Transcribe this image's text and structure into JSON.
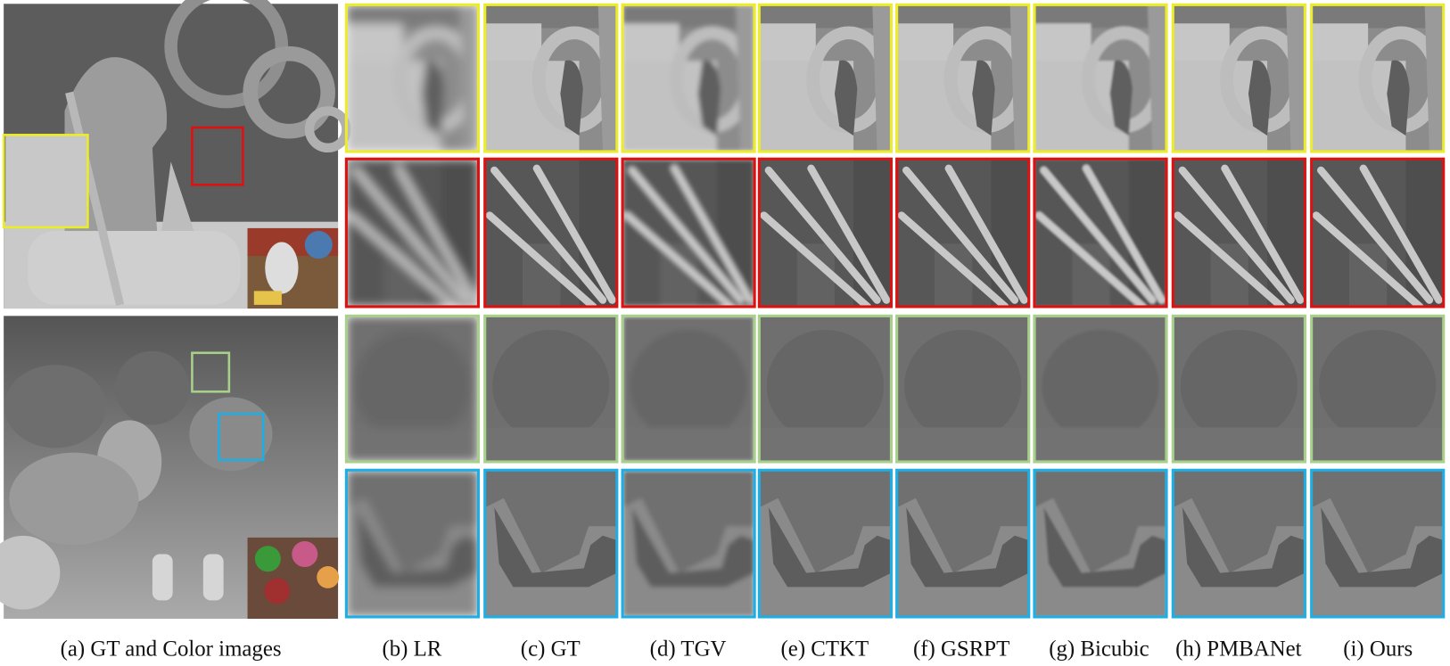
{
  "captions": [
    "(a) GT and Color images",
    "(b) LR",
    "(c) GT",
    "(d) TGV",
    "(e) CTKT",
    "(f) GSRPT",
    "(g) Bicubic",
    "(h) PMBANet",
    "(i) Ours"
  ]
}
